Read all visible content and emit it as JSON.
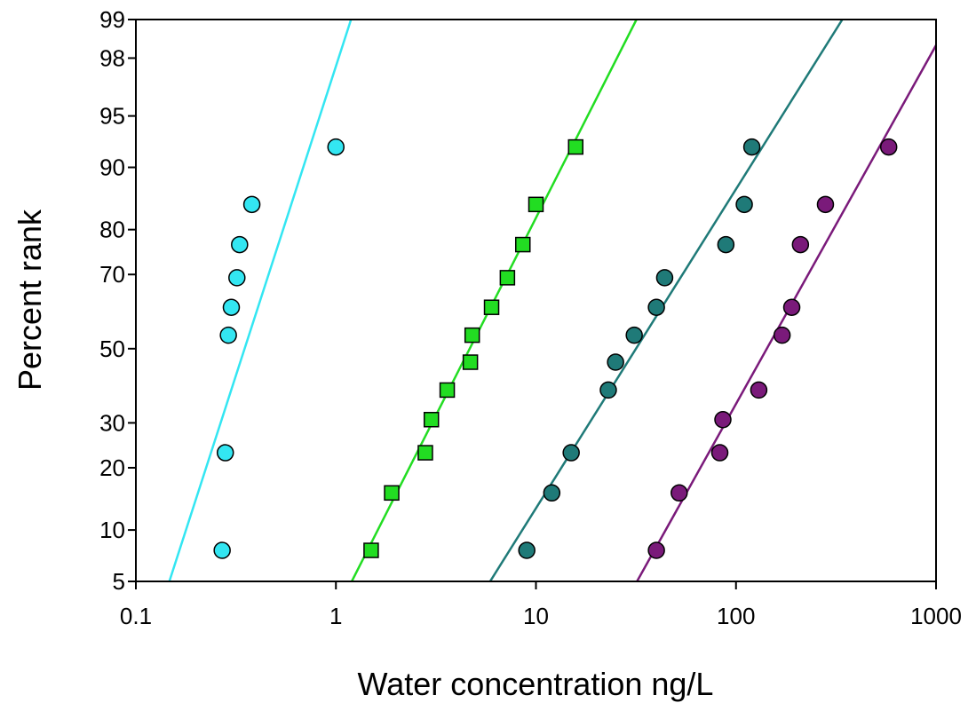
{
  "chart_data": {
    "type": "scatter",
    "xlabel": "Water concentration ng/L",
    "ylabel": "Percent rank",
    "xscale": "log",
    "yscale": "probability",
    "xlim": [
      0.1,
      1000
    ],
    "ylim": [
      5,
      99
    ],
    "x_ticks": [
      0.1,
      1,
      10,
      100,
      1000
    ],
    "x_tick_labels": [
      "0.1",
      "1",
      "10",
      "100",
      "1000"
    ],
    "y_ticks": [
      5,
      10,
      20,
      30,
      50,
      70,
      80,
      90,
      95,
      98,
      99
    ],
    "y_tick_labels": [
      "5",
      "10",
      "20",
      "30",
      "50",
      "70",
      "80",
      "90",
      "95",
      "98",
      "99"
    ],
    "grid": false,
    "legend": "none",
    "series": [
      {
        "color": "#33e6f2",
        "marker": "circle",
        "points": [
          [
            0.27,
            7.7
          ],
          [
            0.28,
            23.1
          ],
          [
            0.29,
            53.8
          ],
          [
            0.3,
            61.5
          ],
          [
            0.32,
            69.2
          ],
          [
            0.33,
            76.9
          ],
          [
            0.38,
            84.6
          ],
          [
            1.0,
            92.3
          ]
        ],
        "fit_line": [
          [
            0.147,
            5
          ],
          [
            1.19,
            99
          ]
        ]
      },
      {
        "color": "#22dd22",
        "marker": "square",
        "points": [
          [
            1.5,
            7.7
          ],
          [
            1.9,
            15.4
          ],
          [
            2.8,
            23.1
          ],
          [
            3.0,
            30.8
          ],
          [
            3.6,
            38.5
          ],
          [
            4.7,
            46.2
          ],
          [
            4.8,
            53.8
          ],
          [
            6.0,
            61.5
          ],
          [
            7.2,
            69.2
          ],
          [
            8.6,
            76.9
          ],
          [
            10.0,
            84.6
          ],
          [
            15.8,
            92.3
          ]
        ],
        "fit_line": [
          [
            1.2,
            5
          ],
          [
            31.8,
            99
          ]
        ]
      },
      {
        "color": "#1f7a78",
        "marker": "circle",
        "points": [
          [
            9.0,
            7.7
          ],
          [
            12.0,
            15.4
          ],
          [
            15.0,
            23.1
          ],
          [
            23.0,
            38.5
          ],
          [
            25.0,
            46.2
          ],
          [
            31.0,
            53.8
          ],
          [
            40.0,
            61.5
          ],
          [
            44.0,
            69.2
          ],
          [
            89.0,
            76.9
          ],
          [
            110.0,
            84.6
          ],
          [
            120.0,
            92.3
          ]
        ],
        "fit_line": [
          [
            5.9,
            5
          ],
          [
            340,
            99
          ]
        ]
      },
      {
        "color": "#7a1a7a",
        "marker": "circle",
        "points": [
          [
            40.0,
            7.7
          ],
          [
            52.0,
            15.4
          ],
          [
            83.0,
            23.1
          ],
          [
            86.0,
            30.8
          ],
          [
            130.0,
            38.5
          ],
          [
            170.0,
            53.8
          ],
          [
            190.0,
            61.5
          ],
          [
            210.0,
            76.9
          ],
          [
            280.0,
            84.6
          ],
          [
            580.0,
            92.3
          ]
        ],
        "fit_line": [
          [
            32,
            5
          ],
          [
            1000,
            98.4
          ]
        ]
      }
    ]
  }
}
